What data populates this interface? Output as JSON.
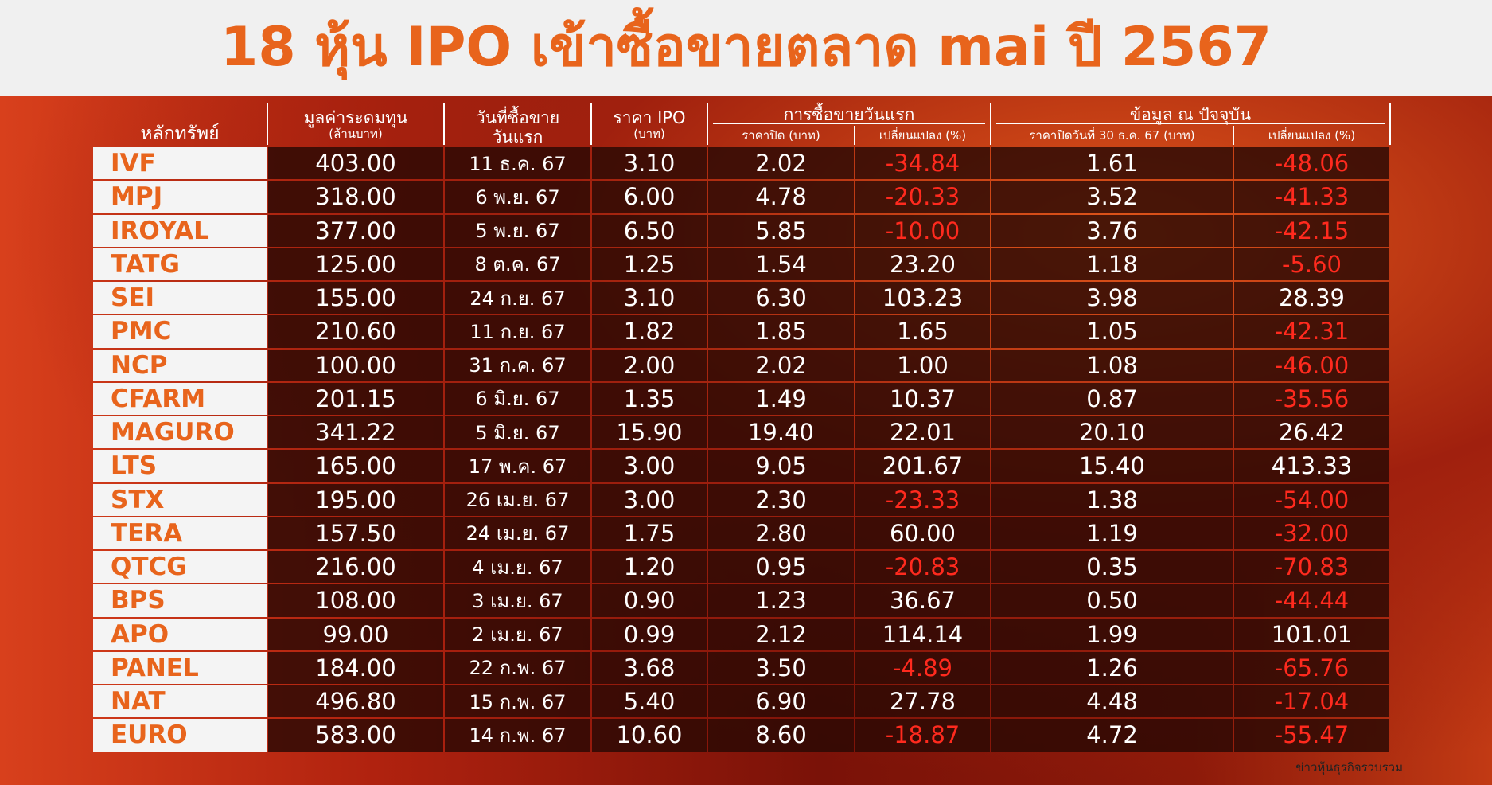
{
  "header": {
    "title": "18 หุ้น IPO เข้าซื้อขายตลาด mai ปี 2567"
  },
  "table": {
    "columns": [
      {
        "label": "หลักทรัพย์"
      },
      {
        "label": "มูลค่าระดมทุน",
        "sub": "(ล้านบาท)"
      },
      {
        "label": "วันที่ซื้อขาย",
        "sub": "วันแรก"
      },
      {
        "label": "ราคา IPO",
        "sub": "(บาท)"
      }
    ],
    "groups": [
      {
        "label": "การซื้อขายวันแรก",
        "columns": [
          "ราคาปิด (บาท)",
          "เปลี่ยนแปลง (%)"
        ]
      },
      {
        "label": "ข้อมูล ณ ปัจจุบัน",
        "columns": [
          "ราคาปิดวันที่ 30 ธ.ค. 67 (บาท)",
          "เปลี่ยนแปลง (%)"
        ]
      }
    ],
    "rows": [
      [
        "IVF",
        "403.00",
        "11 ธ.ค. 67",
        "3.10",
        "2.02",
        "-34.84",
        "1.61",
        "-48.06"
      ],
      [
        "MPJ",
        "318.00",
        "6 พ.ย. 67",
        "6.00",
        "4.78",
        "-20.33",
        "3.52",
        "-41.33"
      ],
      [
        "IROYAL",
        "377.00",
        "5 พ.ย. 67",
        "6.50",
        "5.85",
        "-10.00",
        "3.76",
        "-42.15"
      ],
      [
        "TATG",
        "125.00",
        "8 ต.ค. 67",
        "1.25",
        "1.54",
        "23.20",
        "1.18",
        "-5.60"
      ],
      [
        "SEI",
        "155.00",
        "24 ก.ย. 67",
        "3.10",
        "6.30",
        "103.23",
        "3.98",
        "28.39"
      ],
      [
        "PMC",
        "210.60",
        "11 ก.ย. 67",
        "1.82",
        "1.85",
        "1.65",
        "1.05",
        "-42.31"
      ],
      [
        "NCP",
        "100.00",
        "31 ก.ค. 67",
        "2.00",
        "2.02",
        "1.00",
        "1.08",
        "-46.00"
      ],
      [
        "CFARM",
        "201.15",
        "6 มิ.ย. 67",
        "1.35",
        "1.49",
        "10.37",
        "0.87",
        "-35.56"
      ],
      [
        "MAGURO",
        "341.22",
        "5 มิ.ย. 67",
        "15.90",
        "19.40",
        "22.01",
        "20.10",
        "26.42"
      ],
      [
        "LTS",
        "165.00",
        "17 พ.ค. 67",
        "3.00",
        "9.05",
        "201.67",
        "15.40",
        "413.33"
      ],
      [
        "STX",
        "195.00",
        "26 เม.ย. 67",
        "3.00",
        "2.30",
        "-23.33",
        "1.38",
        "-54.00"
      ],
      [
        "TERA",
        "157.50",
        "24 เม.ย. 67",
        "1.75",
        "2.80",
        "60.00",
        "1.19",
        "-32.00"
      ],
      [
        "QTCG",
        "216.00",
        "4 เม.ย. 67",
        "1.20",
        "0.95",
        "-20.83",
        "0.35",
        "-70.83"
      ],
      [
        "BPS",
        "108.00",
        "3 เม.ย. 67",
        "0.90",
        "1.23",
        "36.67",
        "0.50",
        "-44.44"
      ],
      [
        "APO",
        "99.00",
        "2 เม.ย. 67",
        "0.99",
        "2.12",
        "114.14",
        "1.99",
        "101.01"
      ],
      [
        "PANEL",
        "184.00",
        "22 ก.พ. 67",
        "3.68",
        "3.50",
        "-4.89",
        "1.26",
        "-65.76"
      ],
      [
        "NAT",
        "496.80",
        "15 ก.พ. 67",
        "5.40",
        "6.90",
        "27.78",
        "4.48",
        "-17.04"
      ],
      [
        "EURO",
        "583.00",
        "14 ก.พ. 67",
        "10.60",
        "8.60",
        "-18.87",
        "4.72",
        "-55.47"
      ]
    ]
  },
  "footer": {
    "source": "ข่าวหุ้นธุรกิจรวบรวม"
  }
}
